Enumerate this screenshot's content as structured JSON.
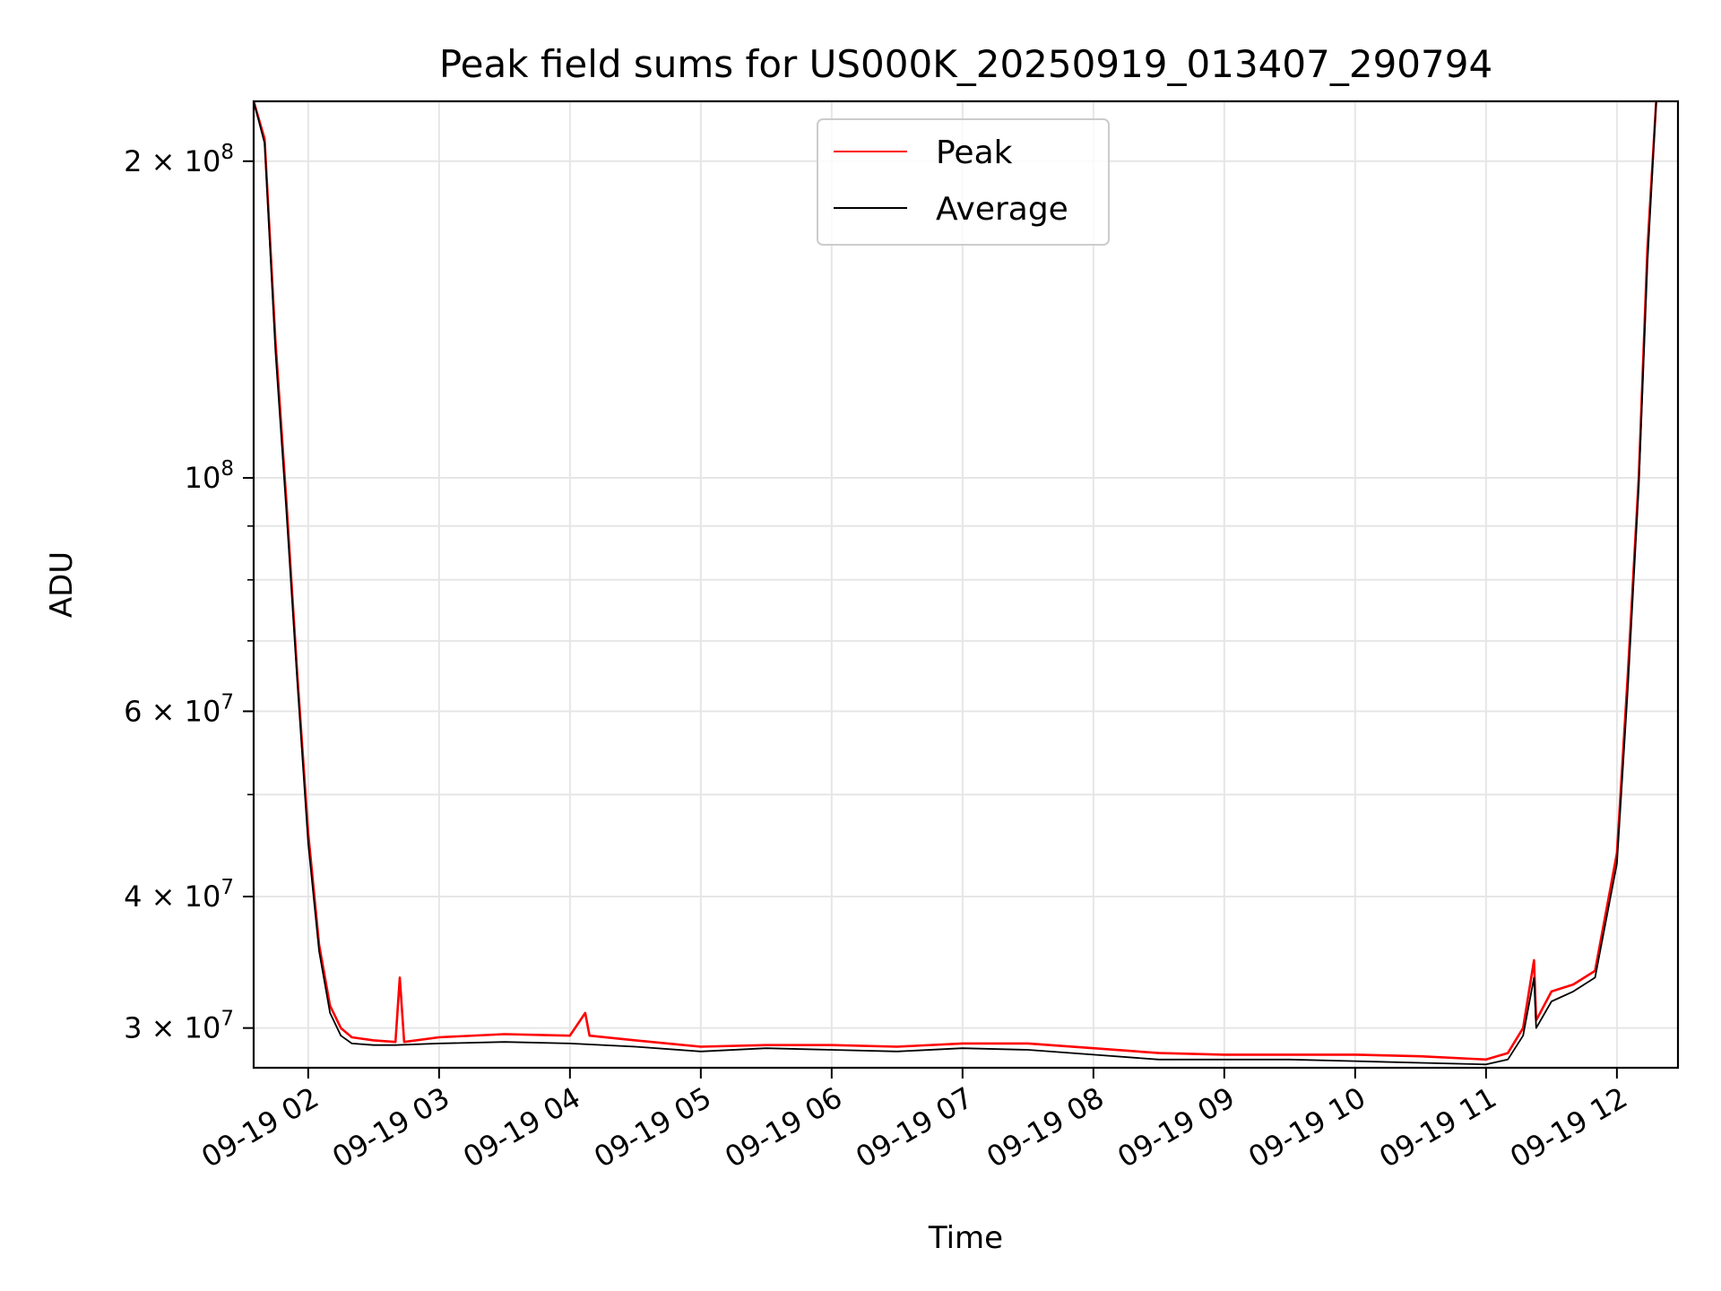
{
  "chart_data": {
    "type": "line",
    "title": "Peak field sums for US000K_20250919_013407_290794",
    "xlabel": "Time",
    "ylabel": "ADU",
    "y_scale": "log",
    "ylim": [
      27500000,
      228000000
    ],
    "xlim": [
      "2025-09-19 01:35",
      "2025-09-19 12:28"
    ],
    "grid": true,
    "legend_position": "top-center",
    "x_ticks": [
      {
        "t": "2025-09-19 02:00",
        "label": "09-19 02"
      },
      {
        "t": "2025-09-19 03:00",
        "label": "09-19 03"
      },
      {
        "t": "2025-09-19 04:00",
        "label": "09-19 04"
      },
      {
        "t": "2025-09-19 05:00",
        "label": "09-19 05"
      },
      {
        "t": "2025-09-19 06:00",
        "label": "09-19 06"
      },
      {
        "t": "2025-09-19 07:00",
        "label": "09-19 07"
      },
      {
        "t": "2025-09-19 08:00",
        "label": "09-19 08"
      },
      {
        "t": "2025-09-19 09:00",
        "label": "09-19 09"
      },
      {
        "t": "2025-09-19 10:00",
        "label": "09-19 10"
      },
      {
        "t": "2025-09-19 11:00",
        "label": "09-19 11"
      },
      {
        "t": "2025-09-19 12:00",
        "label": "09-19 12"
      }
    ],
    "y_ticks_major": [
      {
        "v": 30000000,
        "mant": "3",
        "exp": "7"
      },
      {
        "v": 40000000,
        "mant": "4",
        "exp": "7"
      },
      {
        "v": 60000000,
        "mant": "6",
        "exp": "7"
      },
      {
        "v": 100000000,
        "mant": "",
        "exp": "8"
      },
      {
        "v": 200000000,
        "mant": "2",
        "exp": "8"
      }
    ],
    "y_ticks_minor": [
      50000000,
      70000000,
      80000000,
      90000000
    ],
    "series": [
      {
        "name": "Peak",
        "color": "#ff0000",
        "x": [
          "2025-09-19 01:35",
          "2025-09-19 01:40",
          "2025-09-19 01:45",
          "2025-09-19 01:50",
          "2025-09-19 01:55",
          "2025-09-19 02:00",
          "2025-09-19 02:05",
          "2025-09-19 02:10",
          "2025-09-19 02:15",
          "2025-09-19 02:20",
          "2025-09-19 02:30",
          "2025-09-19 02:40",
          "2025-09-19 02:42",
          "2025-09-19 02:44",
          "2025-09-19 03:00",
          "2025-09-19 03:30",
          "2025-09-19 04:00",
          "2025-09-19 04:07",
          "2025-09-19 04:09",
          "2025-09-19 04:30",
          "2025-09-19 05:00",
          "2025-09-19 05:30",
          "2025-09-19 06:00",
          "2025-09-19 06:30",
          "2025-09-19 07:00",
          "2025-09-19 07:30",
          "2025-09-19 08:00",
          "2025-09-19 08:30",
          "2025-09-19 09:00",
          "2025-09-19 09:30",
          "2025-09-19 10:00",
          "2025-09-19 10:30",
          "2025-09-19 11:00",
          "2025-09-19 11:10",
          "2025-09-19 11:17",
          "2025-09-19 11:22",
          "2025-09-19 11:23",
          "2025-09-19 11:30",
          "2025-09-19 11:40",
          "2025-09-19 11:50",
          "2025-09-19 12:00",
          "2025-09-19 12:05",
          "2025-09-19 12:10",
          "2025-09-19 12:14",
          "2025-09-19 12:18"
        ],
        "values": [
          228000000,
          210000000,
          135000000,
          95000000,
          65000000,
          46000000,
          36000000,
          31500000,
          30000000,
          29400000,
          29200000,
          29100000,
          33500000,
          29100000,
          29400000,
          29600000,
          29500000,
          31000000,
          29500000,
          29200000,
          28800000,
          28900000,
          28900000,
          28800000,
          29000000,
          29000000,
          28700000,
          28400000,
          28300000,
          28300000,
          28300000,
          28200000,
          28000000,
          28400000,
          30000000,
          34800000,
          30500000,
          32500000,
          33000000,
          34000000,
          44000000,
          65000000,
          100000000,
          165000000,
          228000000
        ]
      },
      {
        "name": "Average",
        "color": "#000000",
        "x": [
          "2025-09-19 01:35",
          "2025-09-19 01:40",
          "2025-09-19 01:45",
          "2025-09-19 01:50",
          "2025-09-19 01:55",
          "2025-09-19 02:00",
          "2025-09-19 02:05",
          "2025-09-19 02:10",
          "2025-09-19 02:15",
          "2025-09-19 02:20",
          "2025-09-19 02:30",
          "2025-09-19 02:40",
          "2025-09-19 03:00",
          "2025-09-19 03:30",
          "2025-09-19 04:00",
          "2025-09-19 04:30",
          "2025-09-19 05:00",
          "2025-09-19 05:30",
          "2025-09-19 06:00",
          "2025-09-19 06:30",
          "2025-09-19 07:00",
          "2025-09-19 07:30",
          "2025-09-19 08:00",
          "2025-09-19 08:30",
          "2025-09-19 09:00",
          "2025-09-19 09:30",
          "2025-09-19 10:00",
          "2025-09-19 10:30",
          "2025-09-19 11:00",
          "2025-09-19 11:10",
          "2025-09-19 11:17",
          "2025-09-19 11:22",
          "2025-09-19 11:23",
          "2025-09-19 11:30",
          "2025-09-19 11:40",
          "2025-09-19 11:50",
          "2025-09-19 12:00",
          "2025-09-19 12:05",
          "2025-09-19 12:10",
          "2025-09-19 12:14",
          "2025-09-19 12:18"
        ],
        "values": [
          228000000,
          208000000,
          132000000,
          93000000,
          64000000,
          45000000,
          35500000,
          31000000,
          29500000,
          29000000,
          28900000,
          28900000,
          29000000,
          29100000,
          29000000,
          28800000,
          28500000,
          28700000,
          28600000,
          28500000,
          28700000,
          28600000,
          28300000,
          28000000,
          28000000,
          28000000,
          27900000,
          27800000,
          27700000,
          28000000,
          29500000,
          33500000,
          30000000,
          31800000,
          32500000,
          33500000,
          43000000,
          63000000,
          98000000,
          160000000,
          228000000
        ]
      }
    ]
  }
}
